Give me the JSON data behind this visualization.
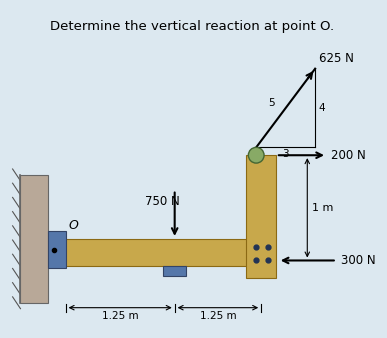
{
  "title": "Determine the vertical reaction at point O.",
  "bg_color": "#dce8f0",
  "beam_color": "#c8a84b",
  "beam_edge_color": "#8B6914",
  "wall_face_color": "#b8a898",
  "wall_edge_color": "#666666",
  "blue_color": "#5577aa",
  "blue_edge": "#334466",
  "bolt_color": "#223355",
  "pulley_color": "#88aa66",
  "pulley_edge": "#446633",
  "arrow_color": "black",
  "dim_color": "black",
  "text_color": "black",
  "force_625": "625 N",
  "force_200": "200 N",
  "force_750": "750 N",
  "force_300": "300 N",
  "dim_1m": "1 m",
  "dim_125a": "1.25 m",
  "dim_125b": "1.25 m",
  "label_O": "O",
  "label_3": "3",
  "label_4": "4",
  "label_5": "5"
}
